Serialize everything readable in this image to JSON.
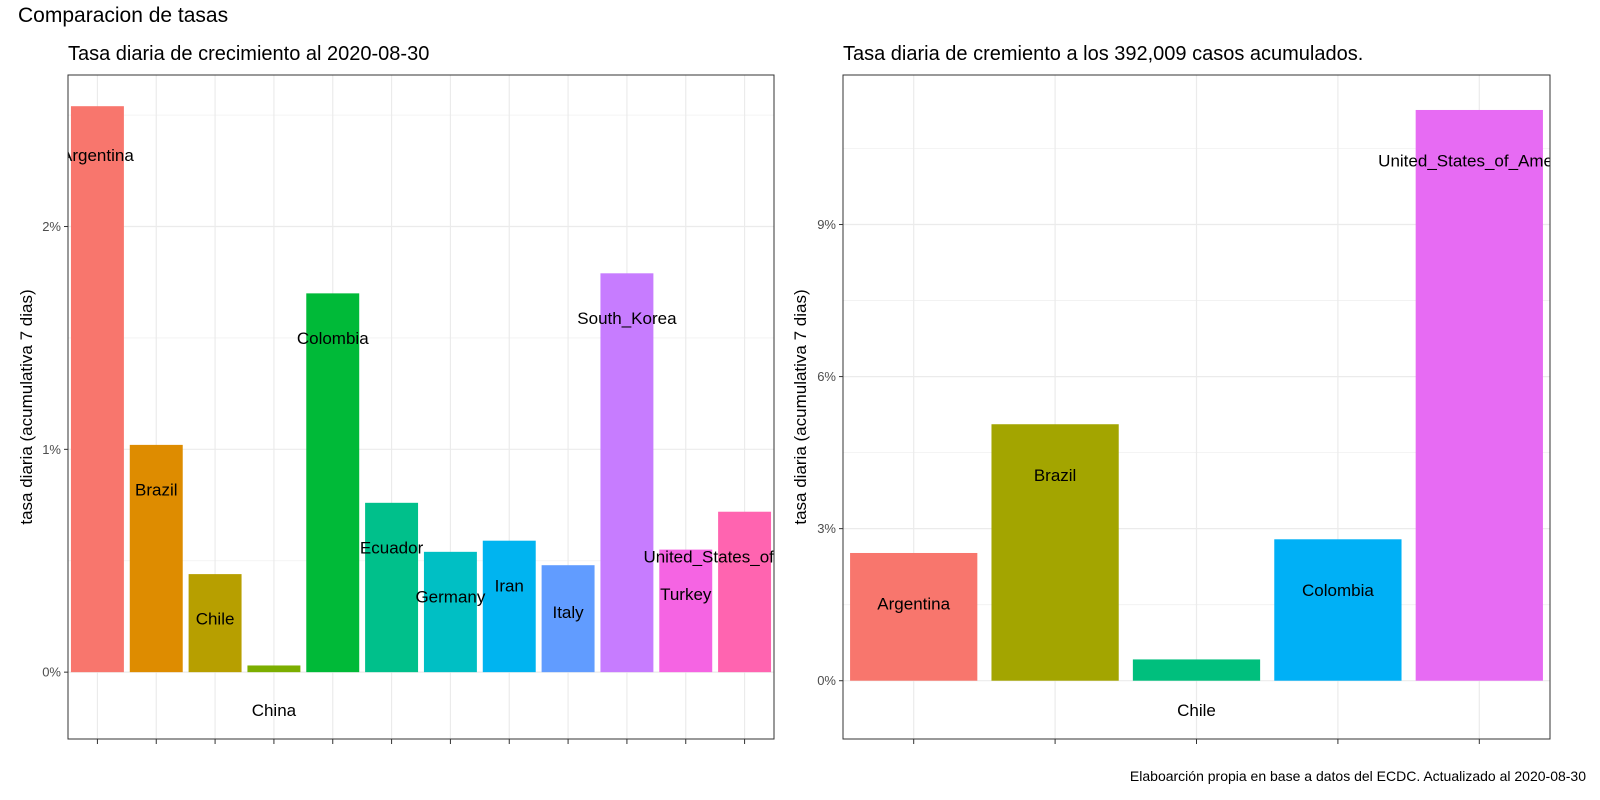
{
  "title": "Comparacion de tasas",
  "caption": "Elaboarción propia en base a datos del ECDC.  Actualizado al  2020-08-30",
  "chart_data": [
    {
      "type": "bar",
      "title": "Tasa diaria de crecimiento al 2020-08-30",
      "xlabel": "",
      "ylabel": "tasa diaria (acumulativa 7 dias)",
      "ylim": [
        -0.003,
        0.0268
      ],
      "yticks": [
        0,
        0.01,
        0.02
      ],
      "ytick_labels": [
        "0%",
        "1%",
        "2%"
      ],
      "grid": true,
      "legend": "none",
      "categories": [
        "Argentina",
        "Brazil",
        "Chile",
        "China",
        "Colombia",
        "Ecuador",
        "Germany",
        "Iran",
        "Italy",
        "South_Korea",
        "Turkey",
        "United_States_of_America"
      ],
      "values": [
        0.0254,
        0.0102,
        0.0044,
        0.0003,
        0.017,
        0.0076,
        0.0054,
        0.0059,
        0.0048,
        0.0179,
        0.0055,
        0.0072
      ],
      "label_positions": [
        0.0232,
        0.0082,
        0.0024,
        -0.0017,
        0.015,
        0.0056,
        0.0034,
        0.0039,
        0.0027,
        0.0159,
        0.0035,
        0.0052
      ],
      "colors": [
        "#F8766D",
        "#DE8C00",
        "#B79F00",
        "#7CAE00",
        "#00BA38",
        "#00C08B",
        "#00BFC4",
        "#00B4F0",
        "#619CFF",
        "#C77CFF",
        "#F564E3",
        "#FF64B0"
      ]
    },
    {
      "type": "bar",
      "title": "Tasa diaria de cremiento a los 392,009 casos acumulados.",
      "xlabel": "",
      "ylabel": "tasa diaria (acumulativa 7 dias)",
      "ylim": [
        -0.0115,
        0.1195
      ],
      "yticks": [
        0,
        0.03,
        0.06,
        0.09
      ],
      "ytick_labels": [
        "0%",
        "3%",
        "6%",
        "9%"
      ],
      "grid": true,
      "legend": "none",
      "categories": [
        "Argentina",
        "Brazil",
        "Chile",
        "Colombia",
        "United_States_of_America"
      ],
      "values": [
        0.0252,
        0.0506,
        0.0042,
        0.0279,
        0.1126
      ],
      "label_positions": [
        0.0152,
        0.0406,
        -0.0058,
        0.0179,
        0.1026
      ],
      "colors": [
        "#F8766D",
        "#A3A500",
        "#00BF7D",
        "#00B0F6",
        "#E76BF3"
      ]
    }
  ]
}
